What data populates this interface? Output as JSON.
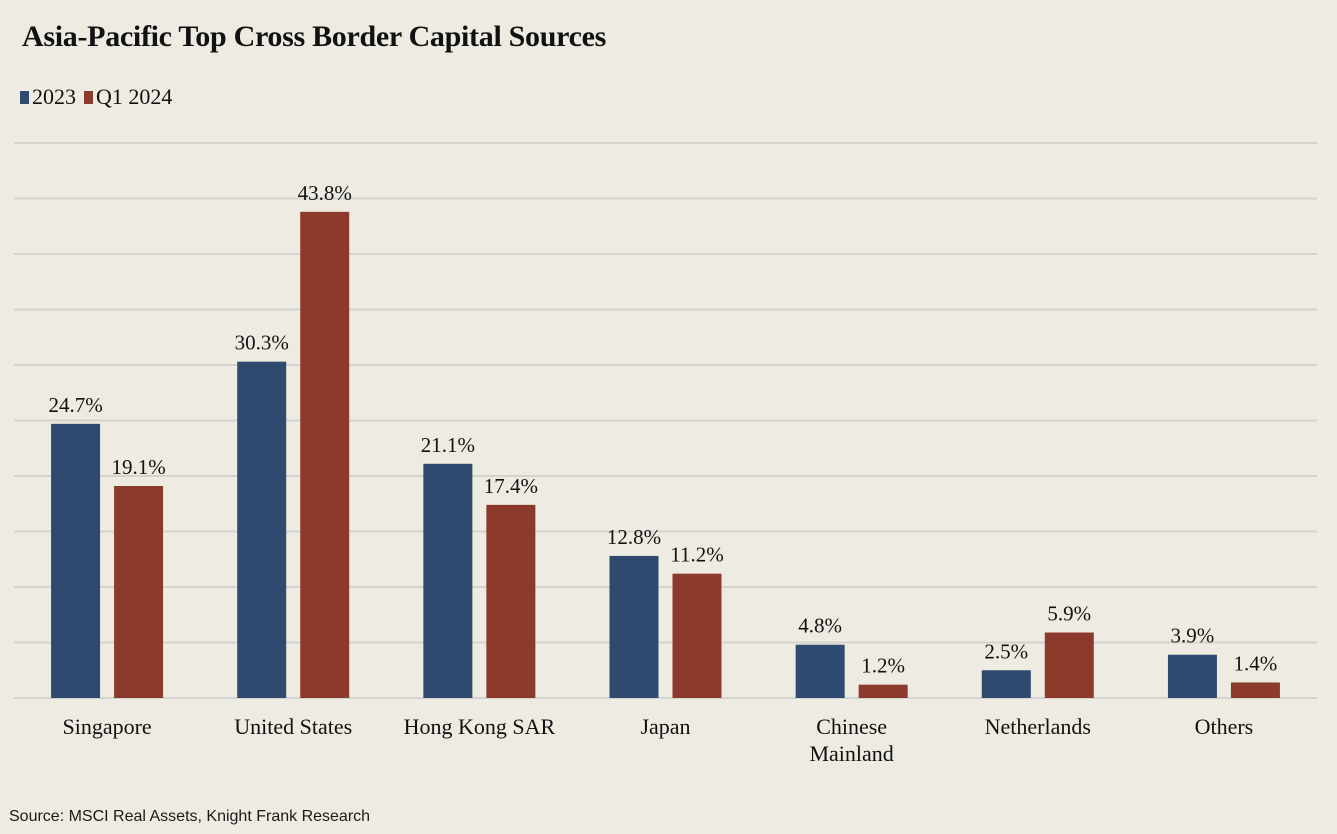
{
  "chart_data": {
    "type": "bar",
    "title": "Asia-Pacific Top Cross Border Capital Sources",
    "categories": [
      "Singapore",
      "United States",
      "Hong Kong SAR",
      "Japan",
      "Chinese Mainland",
      "Netherlands",
      "Others"
    ],
    "series": [
      {
        "name": "2023",
        "color": "#2e4a6e",
        "values": [
          24.7,
          30.3,
          21.1,
          12.8,
          4.8,
          2.5,
          3.9
        ]
      },
      {
        "name": "Q1 2024",
        "color": "#8b3a2b",
        "values": [
          19.1,
          43.8,
          17.4,
          11.2,
          1.2,
          5.9,
          1.4
        ]
      }
    ],
    "value_suffix": "%",
    "xlabel": "",
    "ylabel": "",
    "ylim": [
      0,
      50
    ],
    "ytick_step": 5,
    "grid": true,
    "legend_position": "top-left",
    "source": "Source: MSCI Real Assets, Knight Frank Research"
  }
}
